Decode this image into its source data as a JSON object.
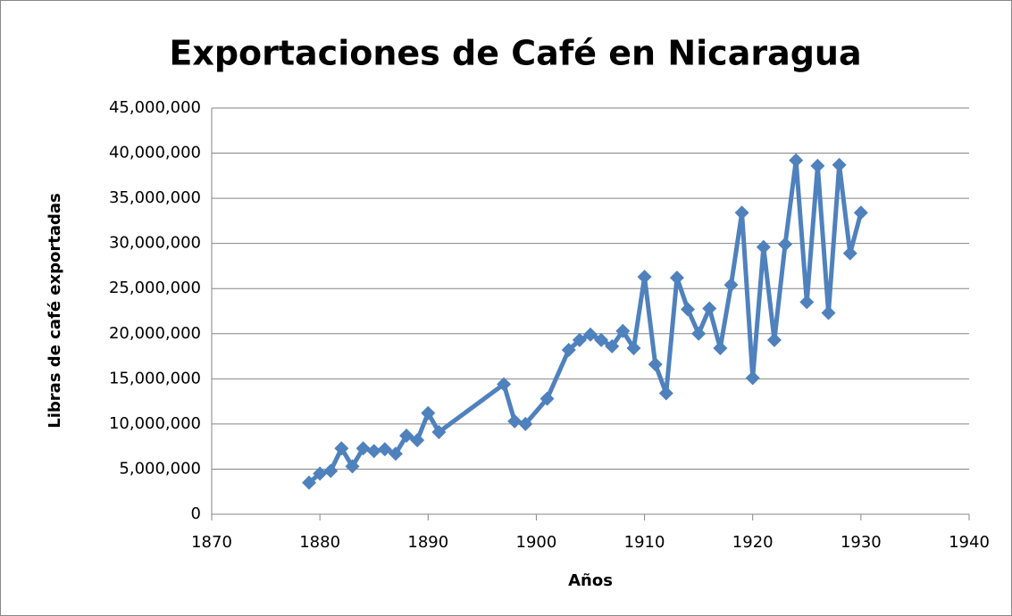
{
  "chart_data": {
    "type": "line",
    "title": "Exportaciones de Café en Nicaragua",
    "x_label": "Años",
    "y_label": "Libras de café exportadas",
    "x": [
      1879,
      1880,
      1881,
      1882,
      1883,
      1884,
      1885,
      1886,
      1887,
      1888,
      1889,
      1890,
      1891,
      1897,
      1898,
      1899,
      1901,
      1903,
      1904,
      1905,
      1906,
      1907,
      1908,
      1909,
      1910,
      1911,
      1912,
      1913,
      1914,
      1915,
      1916,
      1917,
      1918,
      1919,
      1920,
      1921,
      1922,
      1923,
      1924,
      1925,
      1926,
      1927,
      1928,
      1929,
      1930
    ],
    "series": [
      {
        "name": "Libras de café exportadas",
        "color": "#4f81bd",
        "values": [
          3500000,
          4500000,
          4800000,
          7300000,
          5300000,
          7300000,
          7000000,
          7200000,
          6700000,
          8700000,
          8200000,
          11200000,
          9100000,
          14400000,
          10300000,
          10000000,
          12800000,
          18200000,
          19300000,
          19900000,
          19300000,
          18600000,
          20300000,
          18400000,
          26300000,
          16600000,
          13400000,
          26200000,
          22700000,
          20000000,
          22800000,
          18400000,
          25400000,
          33400000,
          15100000,
          29600000,
          19300000,
          29900000,
          39200000,
          23500000,
          38600000,
          22300000,
          38700000,
          28900000,
          33400000
        ]
      }
    ],
    "xlim": [
      1870,
      1940
    ],
    "xticks": [
      1870,
      1880,
      1890,
      1900,
      1910,
      1920,
      1930,
      1940
    ],
    "ylim": [
      0,
      45000000
    ],
    "yticks": [
      0,
      {
        "value": 5000000,
        "label": "5,000,000"
      },
      {
        "value": 10000000,
        "label": "10,000,000"
      },
      {
        "value": 15000000,
        "label": "15,000,000"
      },
      {
        "value": 20000000,
        "label": "20,000,000"
      },
      {
        "value": 25000000,
        "label": "25,000,000"
      },
      {
        "value": 30000000,
        "label": "30,000,000"
      },
      {
        "value": 35000000,
        "label": "35,000,000"
      },
      {
        "value": 40000000,
        "label": "40,000,000"
      },
      {
        "value": 45000000,
        "label": "45,000,000"
      }
    ],
    "grid": true
  }
}
